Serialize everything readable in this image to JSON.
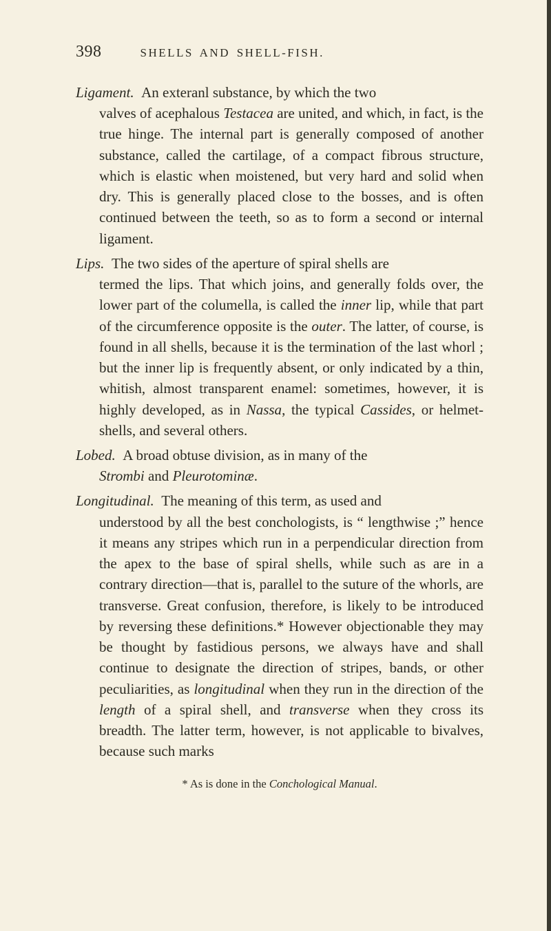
{
  "page_number": "398",
  "running_title": "SHELLS AND SHELL-FISH.",
  "entries": [
    {
      "first": "<span class='term'>Ligament.</span>&nbsp;&nbsp;An exteranl substance, by which the two",
      "cont": "valves of acephalous <span class='term'>Testacea</span> are united, and which, in fact, is the true hinge. The internal part is gene­rally composed of another substance, called the car­tilage, of a compact fibrous structure, which is elastic when moistened, but very hard and solid when dry. This is generally placed close to the bosses, and is often continued between the teeth, so as to form a second or internal ligament."
    },
    {
      "first": "<span class='term'>Lips.</span>&nbsp;&nbsp;The two sides of the aperture of spiral shells are",
      "cont": "termed the lips. That which joins, and generally folds over, the lower part of the columella, is called the <span class='term'>inner</span> lip, while that part of the circumference opposite is the <span class='term'>outer</span>. The latter, of course, is found in all shells, because it is the termination of the last whorl ; but the inner lip is frequently absent, or only indicated by a thin, whitish, almost transparent enamel: sometimes, however, it is highly developed, as in <span class='term'>Nassa</span>, the typical <span class='term'>Cassides</span>, or helmet-shells, and several others."
    },
    {
      "first": "<span class='term'>Lobed.</span>&nbsp;&nbsp;A broad obtuse division, as in many of the",
      "cont": "<span class='term'>Strombi</span> and <span class='term'>Pleurotominæ</span>."
    },
    {
      "first": "<span class='term'>Longitudinal.</span>&nbsp;&nbsp;The meaning of this term, as used and",
      "cont": "understood by all the best conchologists, is “ length­wise ;” hence it means any stripes which run in a perpendicular direction from the apex to the base of spiral shells, while such as are in a contrary direc­tion—that is, parallel to the suture of the whorls, are transverse. Great confusion, therefore, is likely to be introduced by reversing these definitions.* However objectionable they may be thought by fas­tidious persons, we always have and shall continue to designate the direction of stripes, bands, or other peculiarities, as <span class='term'>longitudinal</span> when they run in the direction of the <span class='term'>length</span> of a spiral shell, and <span class='term'>transverse</span> when they cross its breadth. The latter term, how­ever, is not applicable to bivalves, because such marks"
    }
  ],
  "footnote": "* As is done in the <span class='fn-italic'>Conchological Manual</span>."
}
